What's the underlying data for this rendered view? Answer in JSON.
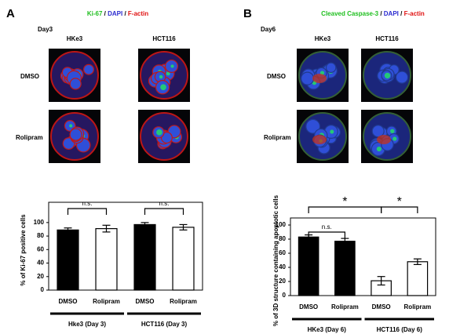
{
  "panels": [
    {
      "label": "A",
      "day": "Day3",
      "stain": [
        {
          "text": "Ki-67",
          "color": "#1fbf1f"
        },
        {
          "text": " / ",
          "color": "#000000"
        },
        {
          "text": "DAPI",
          "color": "#2a2acf"
        },
        {
          "text": " / ",
          "color": "#000000"
        },
        {
          "text": "F-actin",
          "color": "#e01010"
        }
      ],
      "columns": [
        "HKe3",
        "HCT116"
      ],
      "rows": [
        "DMSO",
        "Rolipram"
      ]
    },
    {
      "label": "B",
      "day": "Day6",
      "stain": [
        {
          "text": "Cleaved Caspase-3",
          "color": "#1fbf1f"
        },
        {
          "text": " / ",
          "color": "#000000"
        },
        {
          "text": "DAPI",
          "color": "#2a2acf"
        },
        {
          "text": " / ",
          "color": "#000000"
        },
        {
          "text": "F-actin",
          "color": "#e01010"
        }
      ],
      "columns": [
        "HKe3",
        "HCT116"
      ],
      "rows": [
        "DMSO",
        "Rolipram"
      ]
    }
  ],
  "chart_data": [
    {
      "type": "bar",
      "y_label": "% of Ki-67 positive cells",
      "categories": [
        "DMSO",
        "Rolipram",
        "DMSO",
        "Rolipram"
      ],
      "values": [
        89,
        91,
        97,
        93
      ],
      "errors": [
        3,
        5,
        3,
        4
      ],
      "colors": [
        "#000000",
        "#ffffff",
        "#000000",
        "#ffffff"
      ],
      "groups": [
        "Hke3 (Day 3)",
        "HCT116 (Day 3)"
      ],
      "annotations": [
        "n.s.",
        "n.s."
      ],
      "ylim": [
        0,
        130
      ],
      "yticks": [
        0,
        20,
        40,
        60,
        80,
        100
      ]
    },
    {
      "type": "bar",
      "y_label": "% of 3D structure containing apoptotic cells",
      "categories": [
        "DMSO",
        "Rolipram",
        "DMSO",
        "Rolipram"
      ],
      "values": [
        83,
        77,
        21,
        48
      ],
      "errors": [
        3,
        4,
        6,
        4
      ],
      "colors": [
        "#000000",
        "#000000",
        "#ffffff",
        "#ffffff"
      ],
      "groups": [
        "HKe3 (Day 6)",
        "HCT116 (Day 6)"
      ],
      "annotations": [
        "n.s.",
        "*",
        "*"
      ],
      "ylim": [
        0,
        110
      ],
      "yticks": [
        0,
        20,
        40,
        60,
        80,
        100
      ]
    }
  ]
}
